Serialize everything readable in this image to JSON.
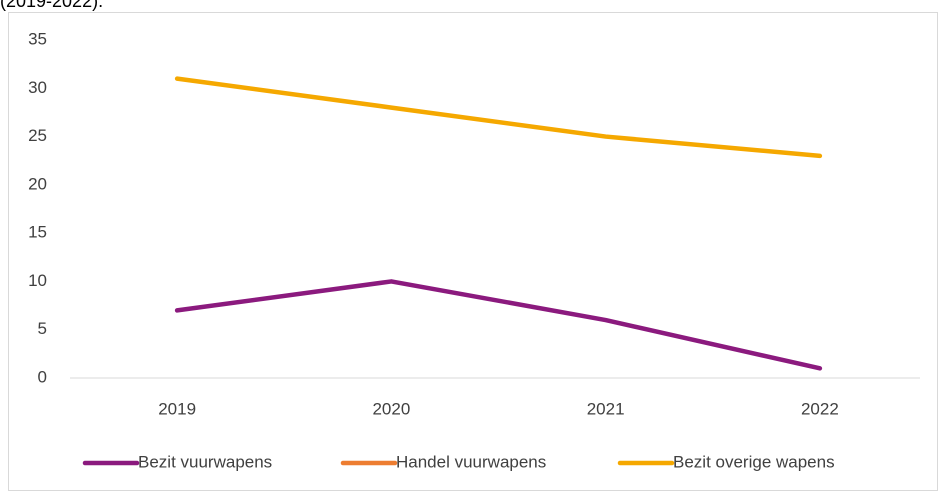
{
  "chart_data": {
    "type": "line",
    "title": "(2019-2022).",
    "categories": [
      "2019",
      "2020",
      "2021",
      "2022"
    ],
    "series": [
      {
        "name": "Bezit vuurwapens",
        "color": "#8b1a7e",
        "values": [
          7,
          10,
          6,
          1
        ]
      },
      {
        "name": "Handel vuurwapens",
        "color": "#ed7d31",
        "values": [
          null,
          null,
          null,
          null
        ]
      },
      {
        "name": "Bezit overige wapens",
        "color": "#f5a800",
        "values": [
          31,
          28,
          25,
          23
        ]
      }
    ],
    "ylim": [
      0,
      35
    ],
    "yticks": [
      0,
      5,
      10,
      15,
      20,
      25,
      30,
      35
    ],
    "grid": false,
    "legend": "bottom"
  }
}
